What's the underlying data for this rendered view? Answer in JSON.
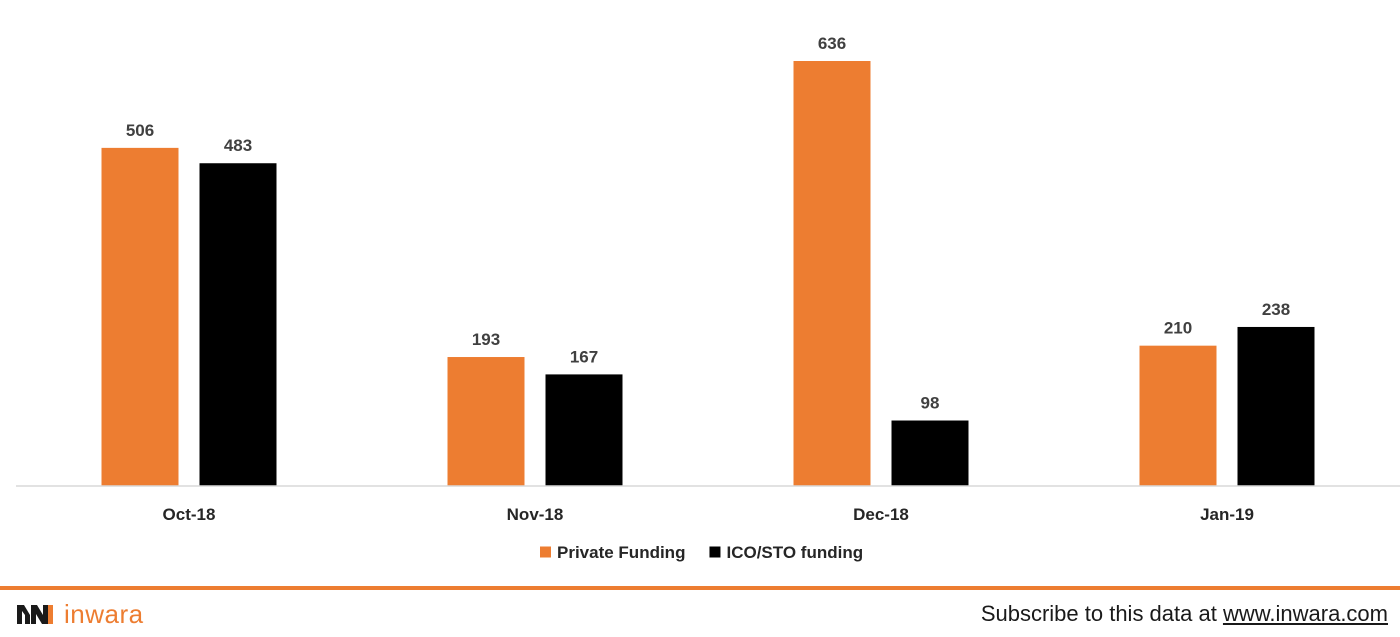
{
  "chart_data": {
    "type": "bar",
    "title": "",
    "xlabel": "",
    "ylabel": "",
    "categories": [
      "Oct-18",
      "Nov-18",
      "Dec-18",
      "Jan-19"
    ],
    "series": [
      {
        "name": "Private Funding",
        "color": "#ED7D31",
        "values": [
          506,
          193,
          636,
          210
        ]
      },
      {
        "name": "ICO/STO funding",
        "color": "#000000",
        "values": [
          483,
          167,
          98,
          238
        ]
      }
    ],
    "ylim": [
      0,
      636
    ],
    "grid": false,
    "legend_position": "bottom-center",
    "data_labels": true
  },
  "footer": {
    "brand_name": "inwara",
    "brand_icon": "inwara-logo-icon",
    "subscribe_text": "Subscribe to this data at ",
    "subscribe_link": "www.inwara.com",
    "accent_color": "#ED7D31"
  }
}
